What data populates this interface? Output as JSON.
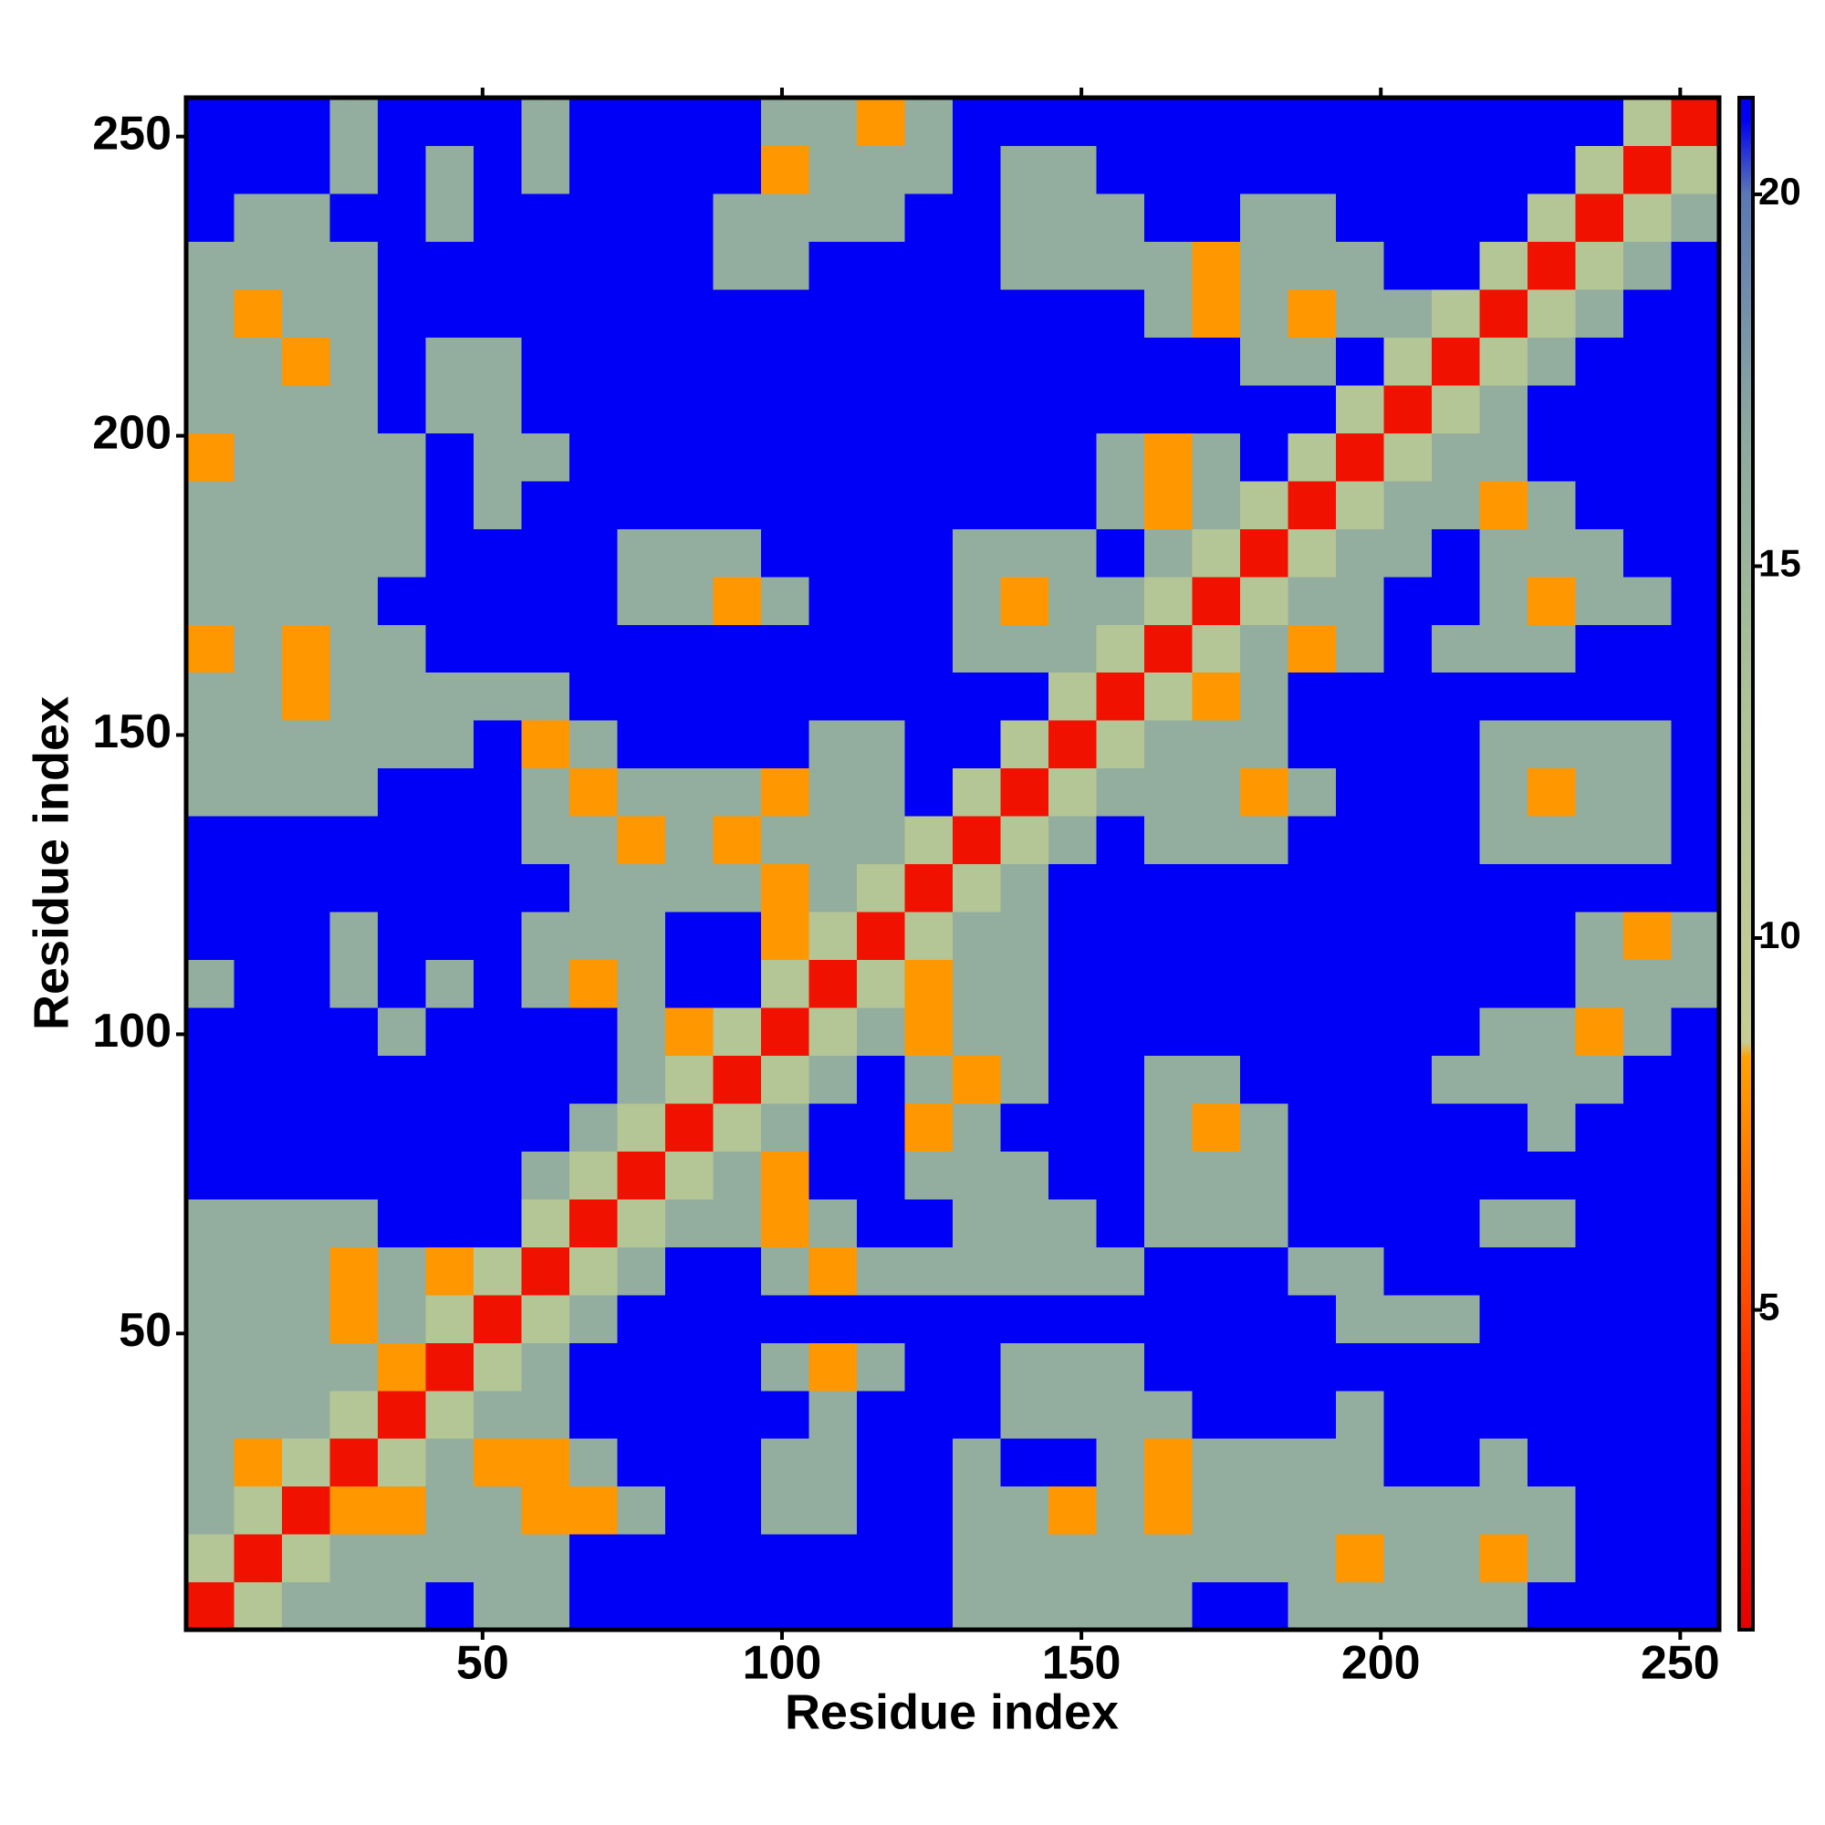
{
  "chart_data": {
    "type": "heatmap",
    "xlabel": "Residue index",
    "ylabel": "Residue index",
    "x": [
      4.5,
      12.5,
      20.5,
      28.5,
      36.5,
      44.5,
      52.5,
      60.5,
      68.5,
      76.5,
      84.5,
      92.5,
      100.5,
      108.5,
      116.5,
      124.5,
      132.5,
      140.5,
      148.5,
      156.5,
      164.5,
      172.5,
      180.5,
      188.5,
      196.5,
      204.5,
      212.5,
      220.5,
      228.5,
      236.5,
      244.5,
      252.5
    ],
    "y": [
      4.5,
      12.5,
      20.5,
      28.5,
      36.5,
      44.5,
      52.5,
      60.5,
      68.5,
      76.5,
      84.5,
      92.5,
      100.5,
      108.5,
      116.5,
      124.5,
      132.5,
      140.5,
      148.5,
      156.5,
      164.5,
      172.5,
      180.5,
      188.5,
      196.5,
      204.5,
      212.5,
      220.5,
      228.5,
      236.5,
      244.5,
      252.5
    ],
    "xlim": [
      0.5,
      256.5
    ],
    "ylim": [
      0.5,
      256.5
    ],
    "xticks": [
      50,
      100,
      150,
      200,
      250
    ],
    "yticks": [
      50,
      100,
      150,
      200,
      250
    ],
    "zlim": [
      0.7,
      21.3
    ],
    "zticks": [
      5,
      10,
      15,
      20
    ],
    "colorscale": [
      [
        0.7,
        "#e80000"
      ],
      [
        4,
        "#ff2a00"
      ],
      [
        8.4,
        "#ffa200"
      ],
      [
        8.6,
        "#c8cc94"
      ],
      [
        13,
        "#aec496"
      ],
      [
        17,
        "#8aa6a0"
      ],
      [
        20,
        "#5a78b4"
      ],
      [
        21,
        "#0000f6"
      ]
    ],
    "z": [
      [
        2,
        12,
        16,
        16,
        16,
        21,
        16,
        16,
        21,
        21,
        21,
        21,
        21,
        21,
        21,
        21,
        16,
        16,
        16,
        16,
        16,
        21,
        21,
        16,
        16,
        16,
        16,
        16,
        21,
        21,
        21,
        21
      ],
      [
        12,
        2,
        12,
        16,
        16,
        16,
        16,
        16,
        21,
        21,
        21,
        21,
        21,
        21,
        21,
        21,
        16,
        16,
        16,
        16,
        16,
        16,
        16,
        16,
        8,
        16,
        16,
        8,
        16,
        21,
        21,
        21
      ],
      [
        16,
        12,
        2,
        8,
        8,
        16,
        16,
        8,
        8,
        16,
        21,
        21,
        16,
        16,
        21,
        21,
        16,
        16,
        8,
        16,
        8,
        16,
        16,
        16,
        16,
        16,
        16,
        16,
        16,
        21,
        21,
        21
      ],
      [
        16,
        8,
        12,
        2,
        12,
        16,
        8,
        8,
        16,
        21,
        21,
        21,
        16,
        16,
        21,
        21,
        16,
        21,
        21,
        16,
        8,
        16,
        16,
        16,
        16,
        21,
        21,
        16,
        21,
        21,
        21,
        21
      ],
      [
        16,
        16,
        16,
        12,
        2,
        12,
        16,
        16,
        21,
        21,
        21,
        21,
        21,
        16,
        21,
        21,
        21,
        16,
        16,
        16,
        16,
        21,
        21,
        21,
        16,
        21,
        21,
        21,
        21,
        21,
        21,
        21
      ],
      [
        16,
        16,
        16,
        16,
        8,
        2,
        12,
        16,
        21,
        21,
        21,
        21,
        16,
        8,
        16,
        21,
        21,
        16,
        16,
        16,
        21,
        21,
        21,
        21,
        21,
        21,
        21,
        21,
        21,
        21,
        21,
        21
      ],
      [
        16,
        16,
        16,
        8,
        16,
        12,
        2,
        12,
        16,
        21,
        21,
        21,
        21,
        21,
        21,
        21,
        21,
        21,
        21,
        21,
        21,
        21,
        21,
        21,
        16,
        16,
        16,
        21,
        21,
        21,
        21,
        21
      ],
      [
        16,
        16,
        16,
        8,
        16,
        8,
        12,
        2,
        12,
        16,
        21,
        21,
        16,
        8,
        16,
        16,
        16,
        16,
        16,
        16,
        21,
        21,
        21,
        16,
        16,
        21,
        21,
        21,
        21,
        21,
        21,
        21
      ],
      [
        16,
        16,
        16,
        16,
        21,
        21,
        21,
        12,
        2,
        12,
        16,
        16,
        8,
        16,
        21,
        21,
        16,
        16,
        16,
        21,
        16,
        16,
        16,
        21,
        21,
        21,
        21,
        16,
        16,
        21,
        21,
        21
      ],
      [
        21,
        21,
        21,
        21,
        21,
        21,
        21,
        16,
        12,
        2,
        12,
        16,
        8,
        21,
        21,
        16,
        16,
        16,
        21,
        21,
        16,
        16,
        16,
        21,
        21,
        21,
        21,
        21,
        21,
        21,
        21,
        21
      ],
      [
        21,
        21,
        21,
        21,
        21,
        21,
        21,
        21,
        16,
        12,
        2,
        12,
        16,
        21,
        21,
        8,
        16,
        21,
        21,
        21,
        16,
        8,
        16,
        21,
        21,
        21,
        21,
        21,
        16,
        21,
        21,
        21
      ],
      [
        21,
        21,
        21,
        21,
        21,
        21,
        21,
        21,
        21,
        16,
        12,
        2,
        12,
        16,
        21,
        16,
        8,
        16,
        21,
        21,
        16,
        16,
        21,
        21,
        21,
        21,
        16,
        16,
        16,
        16,
        21,
        21
      ],
      [
        21,
        21,
        21,
        21,
        16,
        21,
        21,
        21,
        21,
        16,
        8,
        12,
        2,
        12,
        16,
        8,
        16,
        16,
        21,
        21,
        21,
        21,
        21,
        21,
        21,
        21,
        21,
        16,
        16,
        8,
        16,
        21
      ],
      [
        16,
        21,
        21,
        16,
        21,
        16,
        21,
        16,
        8,
        16,
        21,
        21,
        12,
        2,
        12,
        8,
        16,
        16,
        21,
        21,
        21,
        21,
        21,
        21,
        21,
        21,
        21,
        21,
        21,
        16,
        16,
        16
      ],
      [
        21,
        21,
        21,
        16,
        21,
        21,
        21,
        16,
        16,
        16,
        21,
        21,
        8,
        12,
        2,
        12,
        16,
        16,
        21,
        21,
        21,
        21,
        21,
        21,
        21,
        21,
        21,
        21,
        21,
        16,
        8,
        16
      ],
      [
        21,
        21,
        21,
        21,
        21,
        21,
        21,
        21,
        16,
        16,
        16,
        16,
        8,
        16,
        12,
        2,
        12,
        16,
        21,
        21,
        21,
        21,
        21,
        21,
        21,
        21,
        21,
        21,
        21,
        21,
        21,
        21
      ],
      [
        21,
        21,
        21,
        21,
        21,
        21,
        21,
        16,
        16,
        8,
        16,
        8,
        16,
        16,
        16,
        12,
        2,
        12,
        16,
        21,
        16,
        16,
        16,
        21,
        21,
        21,
        21,
        16,
        16,
        16,
        16,
        21
      ],
      [
        16,
        16,
        16,
        16,
        21,
        21,
        21,
        16,
        8,
        16,
        16,
        16,
        8,
        16,
        16,
        21,
        12,
        2,
        12,
        16,
        16,
        16,
        8,
        16,
        21,
        21,
        21,
        16,
        8,
        16,
        16,
        21
      ],
      [
        16,
        16,
        16,
        16,
        16,
        16,
        21,
        8,
        16,
        21,
        21,
        21,
        21,
        16,
        16,
        21,
        21,
        12,
        2,
        12,
        16,
        16,
        16,
        21,
        21,
        21,
        21,
        16,
        16,
        16,
        16,
        21
      ],
      [
        16,
        16,
        8,
        16,
        16,
        16,
        16,
        16,
        21,
        21,
        21,
        21,
        21,
        21,
        21,
        21,
        21,
        21,
        12,
        2,
        12,
        8,
        16,
        21,
        21,
        21,
        21,
        21,
        21,
        21,
        21,
        21
      ],
      [
        8,
        16,
        8,
        16,
        16,
        21,
        21,
        21,
        21,
        21,
        21,
        21,
        21,
        21,
        21,
        21,
        16,
        16,
        16,
        12,
        2,
        12,
        16,
        8,
        16,
        21,
        16,
        16,
        16,
        21,
        21,
        21
      ],
      [
        16,
        16,
        16,
        16,
        21,
        21,
        21,
        21,
        21,
        16,
        16,
        8,
        16,
        21,
        21,
        21,
        16,
        8,
        16,
        16,
        12,
        2,
        12,
        16,
        16,
        21,
        21,
        16,
        8,
        16,
        16,
        21
      ],
      [
        16,
        16,
        16,
        16,
        16,
        21,
        21,
        21,
        21,
        16,
        16,
        16,
        21,
        21,
        21,
        21,
        16,
        16,
        16,
        21,
        16,
        12,
        2,
        12,
        16,
        16,
        21,
        16,
        16,
        16,
        21,
        21
      ],
      [
        16,
        16,
        16,
        16,
        16,
        21,
        16,
        21,
        21,
        21,
        21,
        21,
        21,
        21,
        21,
        21,
        21,
        21,
        21,
        16,
        8,
        16,
        12,
        2,
        12,
        16,
        16,
        8,
        16,
        21,
        21,
        21
      ],
      [
        8,
        16,
        16,
        16,
        16,
        21,
        16,
        16,
        21,
        21,
        21,
        21,
        21,
        21,
        21,
        21,
        21,
        21,
        21,
        16,
        8,
        16,
        21,
        12,
        2,
        12,
        16,
        16,
        21,
        21,
        21,
        21
      ],
      [
        16,
        16,
        16,
        16,
        21,
        16,
        16,
        21,
        21,
        21,
        21,
        21,
        21,
        21,
        21,
        21,
        21,
        21,
        21,
        21,
        21,
        21,
        21,
        21,
        12,
        2,
        12,
        16,
        21,
        21,
        21,
        21
      ],
      [
        16,
        16,
        8,
        16,
        21,
        16,
        16,
        21,
        21,
        21,
        21,
        21,
        21,
        21,
        21,
        21,
        21,
        21,
        21,
        21,
        21,
        21,
        16,
        16,
        21,
        12,
        2,
        12,
        16,
        21,
        21,
        21
      ],
      [
        16,
        8,
        16,
        16,
        21,
        21,
        21,
        21,
        21,
        21,
        21,
        21,
        21,
        21,
        21,
        21,
        21,
        21,
        21,
        21,
        16,
        8,
        16,
        8,
        16,
        16,
        12,
        2,
        12,
        16,
        21,
        21
      ],
      [
        16,
        16,
        16,
        16,
        21,
        21,
        21,
        21,
        21,
        21,
        21,
        16,
        16,
        21,
        21,
        21,
        21,
        16,
        16,
        16,
        16,
        8,
        16,
        16,
        16,
        21,
        21,
        12,
        2,
        12,
        16,
        21
      ],
      [
        21,
        16,
        16,
        21,
        21,
        16,
        21,
        21,
        21,
        21,
        21,
        16,
        16,
        16,
        16,
        21,
        21,
        16,
        16,
        16,
        21,
        21,
        16,
        16,
        21,
        21,
        21,
        21,
        12,
        2,
        12,
        16
      ],
      [
        21,
        21,
        21,
        16,
        21,
        16,
        21,
        16,
        21,
        21,
        21,
        21,
        8,
        16,
        16,
        16,
        21,
        16,
        16,
        21,
        21,
        21,
        21,
        21,
        21,
        21,
        21,
        21,
        21,
        12,
        2,
        12
      ],
      [
        21,
        21,
        21,
        16,
        21,
        21,
        21,
        16,
        21,
        21,
        21,
        21,
        16,
        16,
        8,
        16,
        21,
        21,
        21,
        21,
        21,
        21,
        21,
        21,
        21,
        21,
        21,
        21,
        21,
        21,
        12,
        2
      ]
    ]
  }
}
